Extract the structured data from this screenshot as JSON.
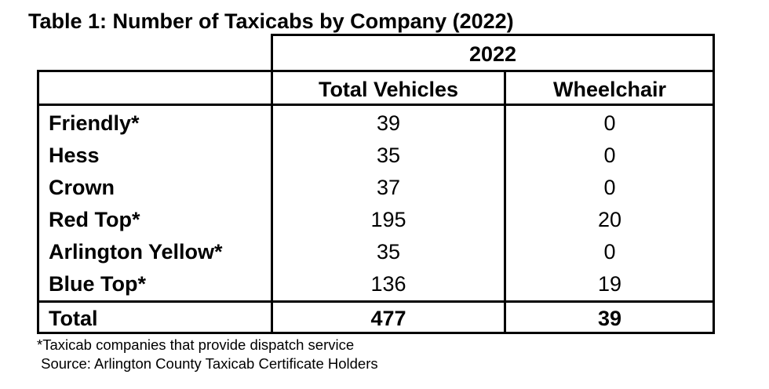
{
  "title": "Table 1: Number of Taxicabs by Company (2022)",
  "header": {
    "group": "2022",
    "col1": "Total Vehicles",
    "col2": "Wheelchair"
  },
  "rows": [
    {
      "company": "Friendly*",
      "total": "39",
      "wheelchair": "0"
    },
    {
      "company": "Hess",
      "total": "35",
      "wheelchair": "0"
    },
    {
      "company": "Crown",
      "total": "37",
      "wheelchair": "0"
    },
    {
      "company": "Red Top*",
      "total": "195",
      "wheelchair": "20"
    },
    {
      "company": "Arlington Yellow*",
      "total": "35",
      "wheelchair": "0"
    },
    {
      "company": "Blue Top*",
      "total": "136",
      "wheelchair": "19"
    }
  ],
  "totals": {
    "label": "Total",
    "total": "477",
    "wheelchair": "39"
  },
  "footnotes": {
    "dispatch": "*Taxicab companies that provide dispatch service",
    "source": " Source: Arlington County Taxicab Certificate Holders"
  }
}
